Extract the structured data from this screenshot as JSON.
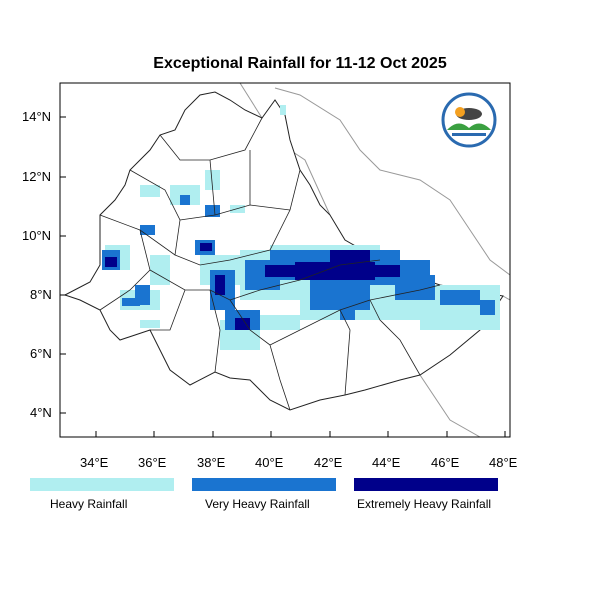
{
  "title": "Exceptional Rainfall for 11-12 Oct 2025",
  "y_ticks": [
    "14°N",
    "12°N",
    "10°N",
    "8°N",
    "6°N",
    "4°N"
  ],
  "x_ticks": [
    "34°E",
    "36°E",
    "38°E",
    "40°E",
    "42°E",
    "44°E",
    "46°E",
    "48°E"
  ],
  "legend": [
    {
      "label": "Heavy Rainfall",
      "color": "#b0eef0"
    },
    {
      "label": "Very Heavy Rainfall",
      "color": "#1a74d0"
    },
    {
      "label": "Extremely Heavy Rainfall",
      "color": "#00008a"
    }
  ],
  "logo": {
    "name": "Ethiopian Meteorology Institute logo"
  }
}
